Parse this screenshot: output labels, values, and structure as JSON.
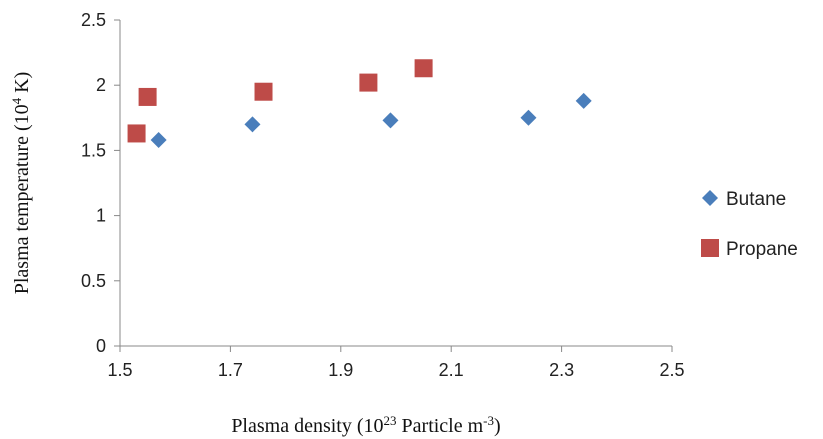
{
  "chart_data": {
    "type": "scatter",
    "x_label": [
      "Plasma density (10",
      "23",
      " Particle m",
      "-3",
      ")"
    ],
    "y_label": [
      "Plasma temperature  (10",
      "4",
      " K)"
    ],
    "xlim": [
      1.5,
      2.5
    ],
    "xticks": [
      1.5,
      1.7,
      1.9,
      2.1,
      2.3,
      2.5
    ],
    "ylim": [
      0,
      2.5
    ],
    "yticks": [
      0,
      0.5,
      1,
      1.5,
      2,
      2.5
    ],
    "grid": false,
    "legend": "right",
    "series": [
      {
        "name": "Butane",
        "color": "#4a7ebb",
        "marker": "diamond",
        "x": [
          1.57,
          1.74,
          1.99,
          2.24,
          2.34
        ],
        "values": [
          1.58,
          1.7,
          1.73,
          1.75,
          1.88
        ]
      },
      {
        "name": "Propane",
        "color": "#be4b48",
        "marker": "square",
        "x": [
          1.53,
          1.55,
          1.76,
          1.95,
          2.05
        ],
        "values": [
          1.63,
          1.91,
          1.95,
          2.02,
          2.13
        ]
      }
    ]
  }
}
